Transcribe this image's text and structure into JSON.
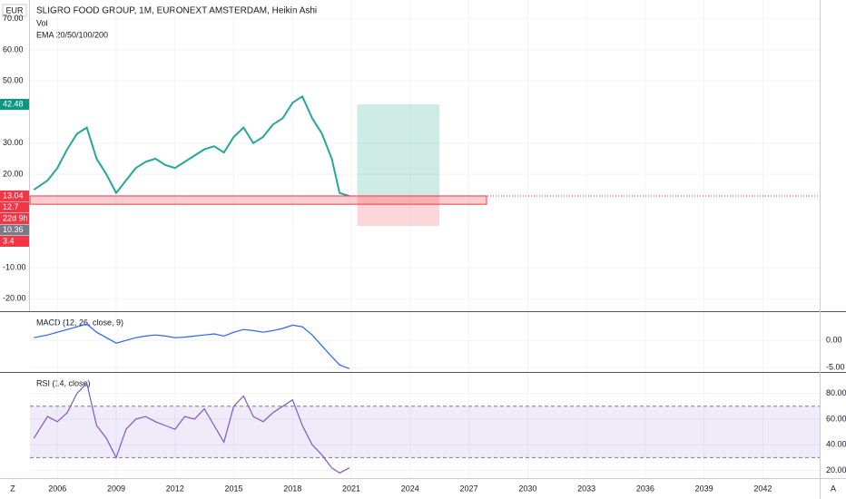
{
  "chart_data": [
    {
      "type": "line",
      "title": "SLIGRO FOOD GROUP, 1M, EURONEXT AMSTERDAM, Heikin Ashi",
      "legend_items": [
        "Vol",
        "EMA 20/50/100/200"
      ],
      "currency": "EUR",
      "color": "#26a69a",
      "x": [
        2004.8,
        2005.5,
        2006,
        2006.5,
        2007,
        2007.5,
        2008,
        2008.5,
        2009,
        2009.5,
        2010,
        2010.5,
        2011,
        2011.5,
        2012,
        2012.5,
        2013,
        2013.5,
        2014,
        2014.5,
        2015,
        2015.5,
        2016,
        2016.5,
        2017,
        2017.5,
        2018,
        2018.5,
        2019,
        2019.5,
        2020,
        2020.4,
        2020.9
      ],
      "values": [
        15,
        18,
        22,
        28,
        33,
        35,
        25,
        20,
        14,
        18,
        22,
        24,
        25,
        23,
        22,
        24,
        26,
        28,
        29,
        27,
        32,
        35,
        30,
        32,
        36,
        38,
        43,
        45,
        38,
        33,
        25,
        14,
        13
      ],
      "xlim": [
        2004.6,
        2044.9
      ],
      "xticks": [
        2006,
        2009,
        2012,
        2015,
        2018,
        2021,
        2024,
        2027,
        2030,
        2033,
        2036,
        2039,
        2042
      ],
      "ylim": [
        -24,
        76
      ],
      "yticks": [
        {
          "value": 70,
          "label": "70.00"
        },
        {
          "value": 60,
          "label": "60.00"
        },
        {
          "value": 50,
          "label": "50.00"
        },
        {
          "value": 30,
          "label": "30.00"
        },
        {
          "value": 20,
          "label": "20.00"
        },
        {
          "value": -10,
          "label": "-10.00"
        },
        {
          "value": -20,
          "label": "-20.00"
        }
      ],
      "price_tags": [
        {
          "value": 42.48,
          "color": "#089981"
        },
        {
          "value": 13.04,
          "color": "#f23645"
        },
        {
          "value": 12.7,
          "color": "#f23645"
        },
        {
          "label": "22d 9h",
          "color": "#f23645"
        },
        {
          "value": 10.36,
          "color": "#787b86"
        },
        {
          "value": 3.4,
          "color": "#f23645"
        }
      ],
      "grid": true
    },
    {
      "type": "line",
      "title": "MACD (12, 26, close, 9)",
      "color": "#2962ff",
      "values": [
        0.5,
        1,
        1.5,
        2,
        2.5,
        3,
        1.5,
        0.5,
        -0.5,
        0,
        0.5,
        0.8,
        1,
        0.8,
        0.5,
        0.6,
        0.8,
        1,
        1.2,
        0.8,
        1.5,
        2,
        1.8,
        1.5,
        1.8,
        2.2,
        2.8,
        2.5,
        1,
        -1,
        -3,
        -4.5,
        -5.2
      ],
      "ylim": [
        -5.8,
        5.2
      ],
      "yticks": [
        {
          "value": 0,
          "label": "0.00"
        },
        {
          "value": -5,
          "label": "-5.00"
        }
      ]
    },
    {
      "type": "line",
      "title": "RSI (14, close)",
      "color": "#7e57c2",
      "values": [
        45,
        62,
        58,
        65,
        80,
        88,
        55,
        45,
        30,
        52,
        60,
        62,
        58,
        55,
        52,
        62,
        60,
        68,
        55,
        42,
        70,
        78,
        62,
        58,
        65,
        70,
        75,
        55,
        40,
        32,
        22,
        18,
        22
      ],
      "ylim": [
        14,
        96
      ],
      "yticks": [
        {
          "value": 80,
          "label": "80.00"
        },
        {
          "value": 60,
          "label": "60.00"
        },
        {
          "value": 40,
          "label": "40.00"
        },
        {
          "value": 20,
          "label": "20.00"
        }
      ],
      "band": [
        30,
        70
      ]
    }
  ],
  "footer": {
    "left": "Z",
    "right": "A"
  }
}
